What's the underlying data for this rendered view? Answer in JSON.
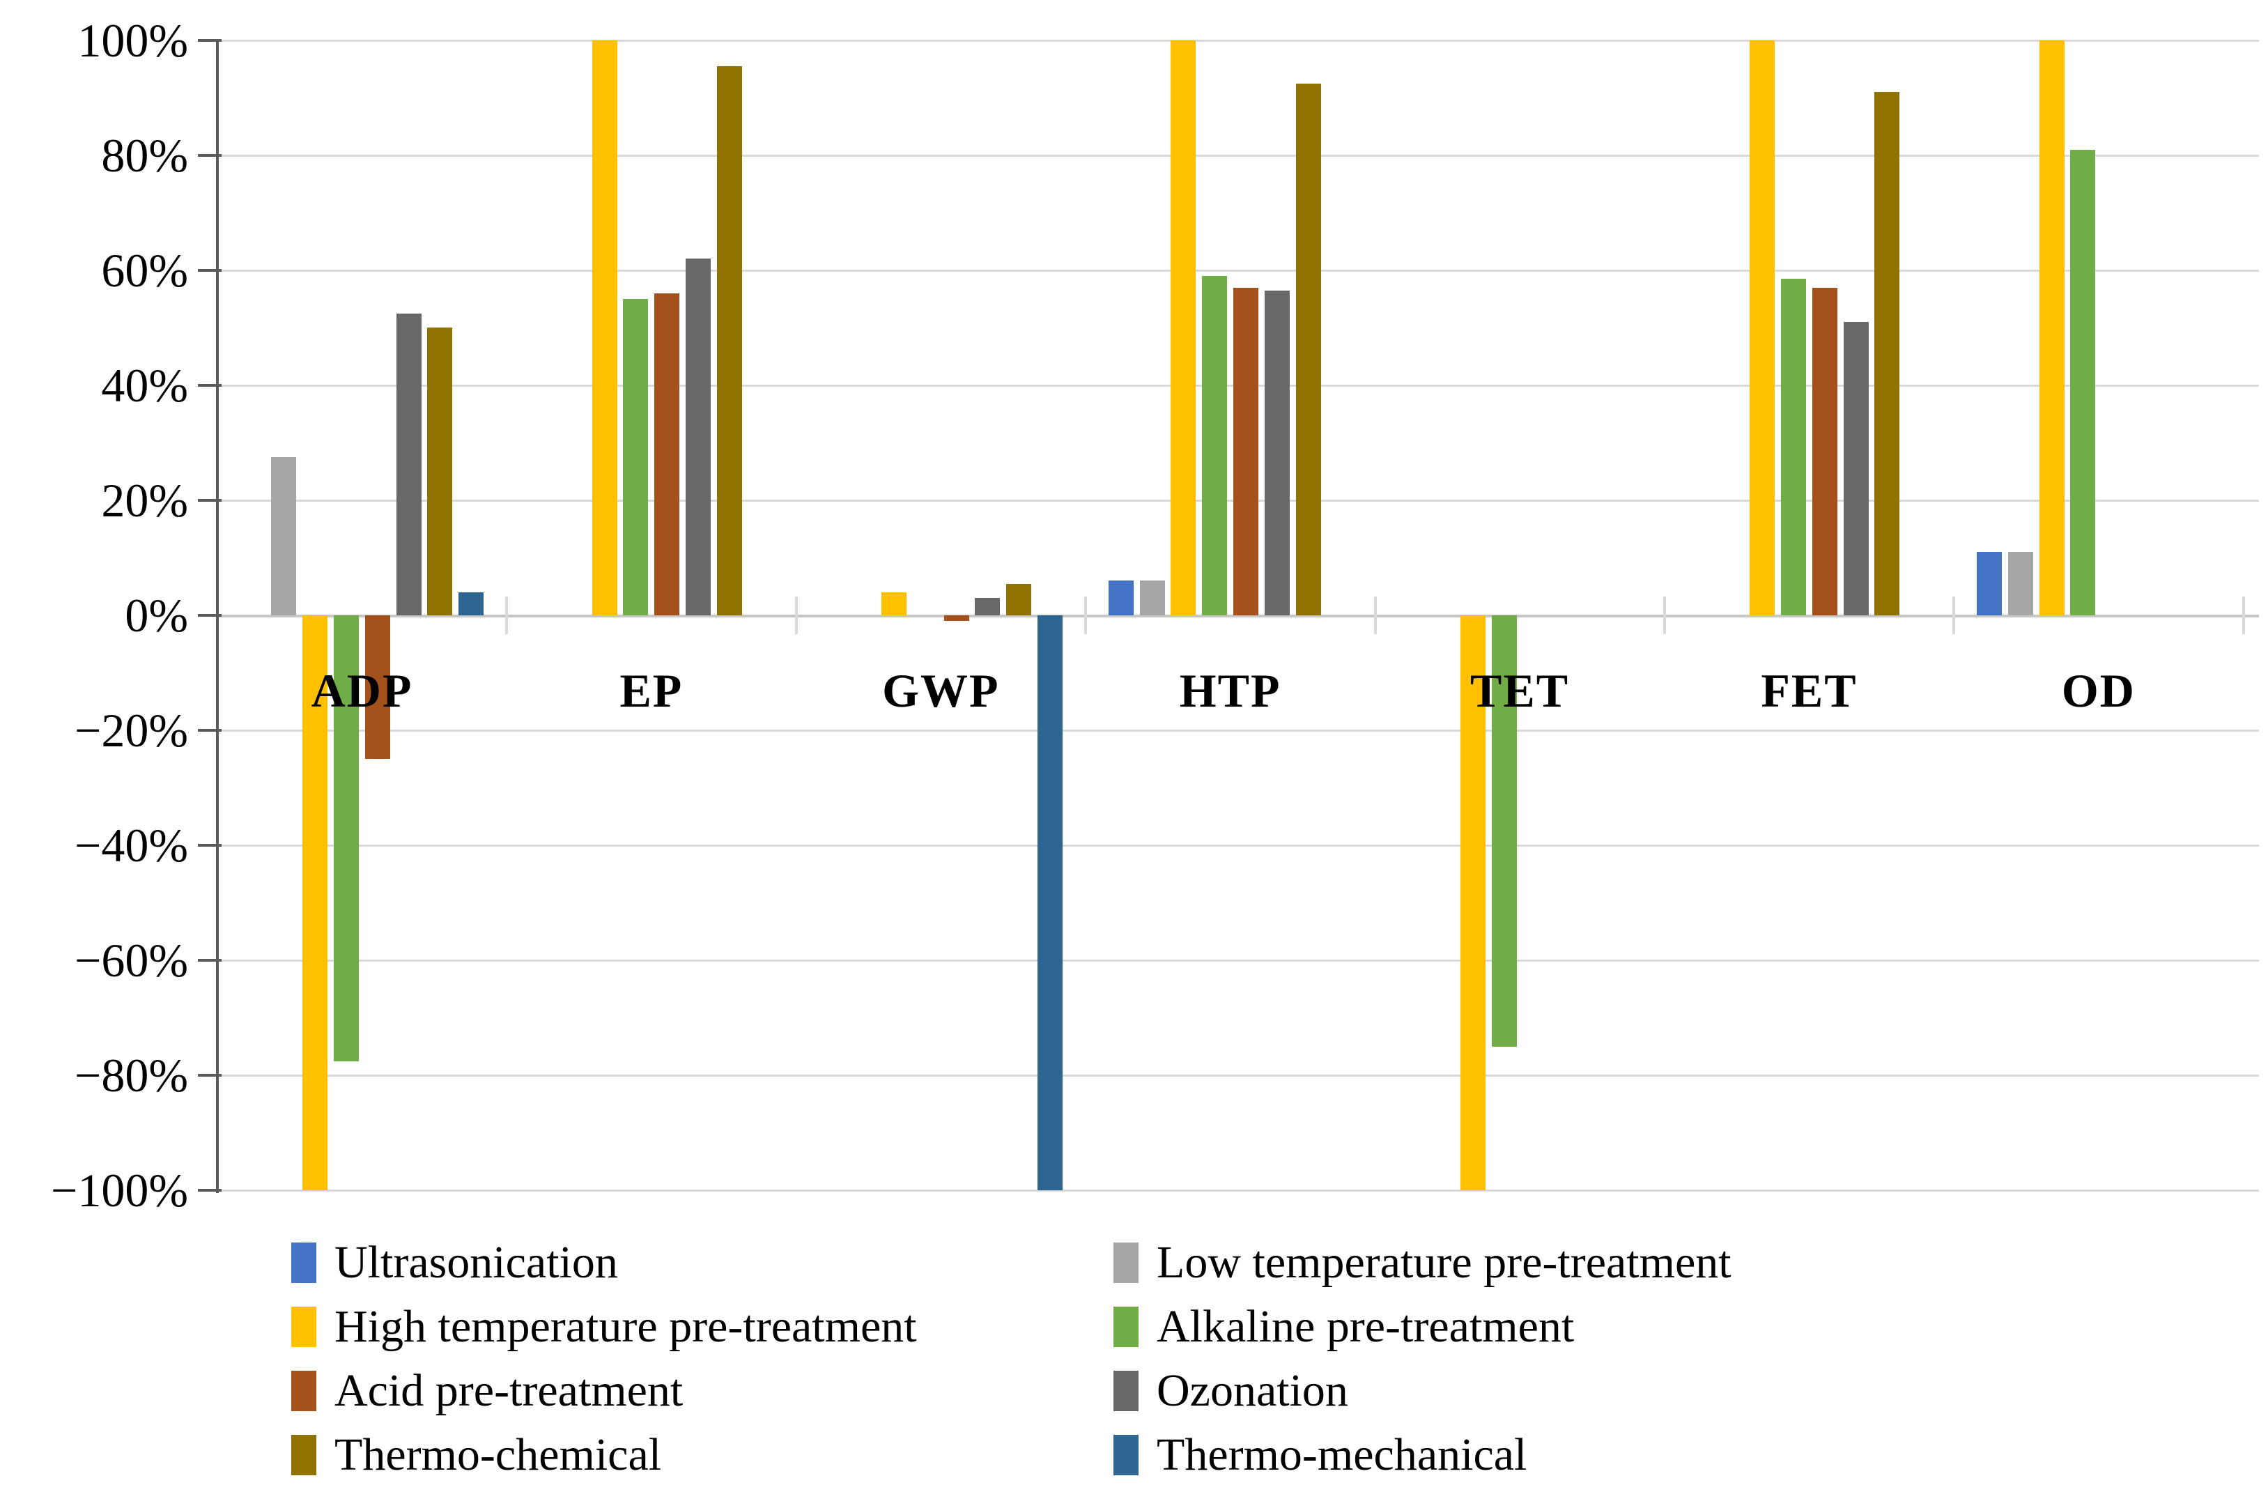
{
  "chart_data": {
    "type": "bar",
    "title": "",
    "xlabel": "",
    "ylabel": "",
    "categories": [
      "ADP",
      "EP",
      "GWP",
      "HTP",
      "TET",
      "FET",
      "OD"
    ],
    "series": [
      {
        "name": "Ultrasonication",
        "color": "#4472C4",
        "values": [
          0,
          0,
          0,
          6,
          0,
          0,
          11
        ]
      },
      {
        "name": "Low temperature pre-treatment",
        "color": "#A6A6A6",
        "values": [
          27.5,
          0,
          0,
          6,
          0,
          0,
          11
        ]
      },
      {
        "name": "High temperature pre-treatment",
        "color": "#FFC000",
        "values": [
          -100,
          100,
          4,
          100,
          -100,
          100,
          100
        ]
      },
      {
        "name": "Alkaline pre-treatment",
        "color": "#70AD47",
        "values": [
          -77.5,
          55,
          0,
          59,
          -75,
          58.5,
          81
        ]
      },
      {
        "name": "Acid pre-treatment",
        "color": "#A5511C",
        "values": [
          -25,
          56,
          -1,
          57,
          0,
          57,
          0
        ]
      },
      {
        "name": "Ozonation",
        "color": "#686868",
        "values": [
          52.5,
          62,
          3,
          56.5,
          0,
          51,
          0
        ]
      },
      {
        "name": "Thermo-chemical",
        "color": "#907200",
        "values": [
          50,
          95.5,
          5.5,
          92.5,
          0,
          91,
          0
        ]
      },
      {
        "name": "Thermo-mechanical",
        "color": "#2E6490",
        "values": [
          4,
          0,
          -100,
          0,
          0,
          0,
          0
        ]
      }
    ],
    "y_axis": {
      "min": -100,
      "max": 100,
      "step": 20,
      "tick_labels": [
        "100%",
        "80%",
        "60%",
        "40%",
        "20%",
        "0%",
        "−20%",
        "−40%",
        "−60%",
        "−80%",
        "−100%"
      ]
    },
    "grid": "horizontal",
    "legend": {
      "position": "bottom",
      "columns": 2
    }
  }
}
